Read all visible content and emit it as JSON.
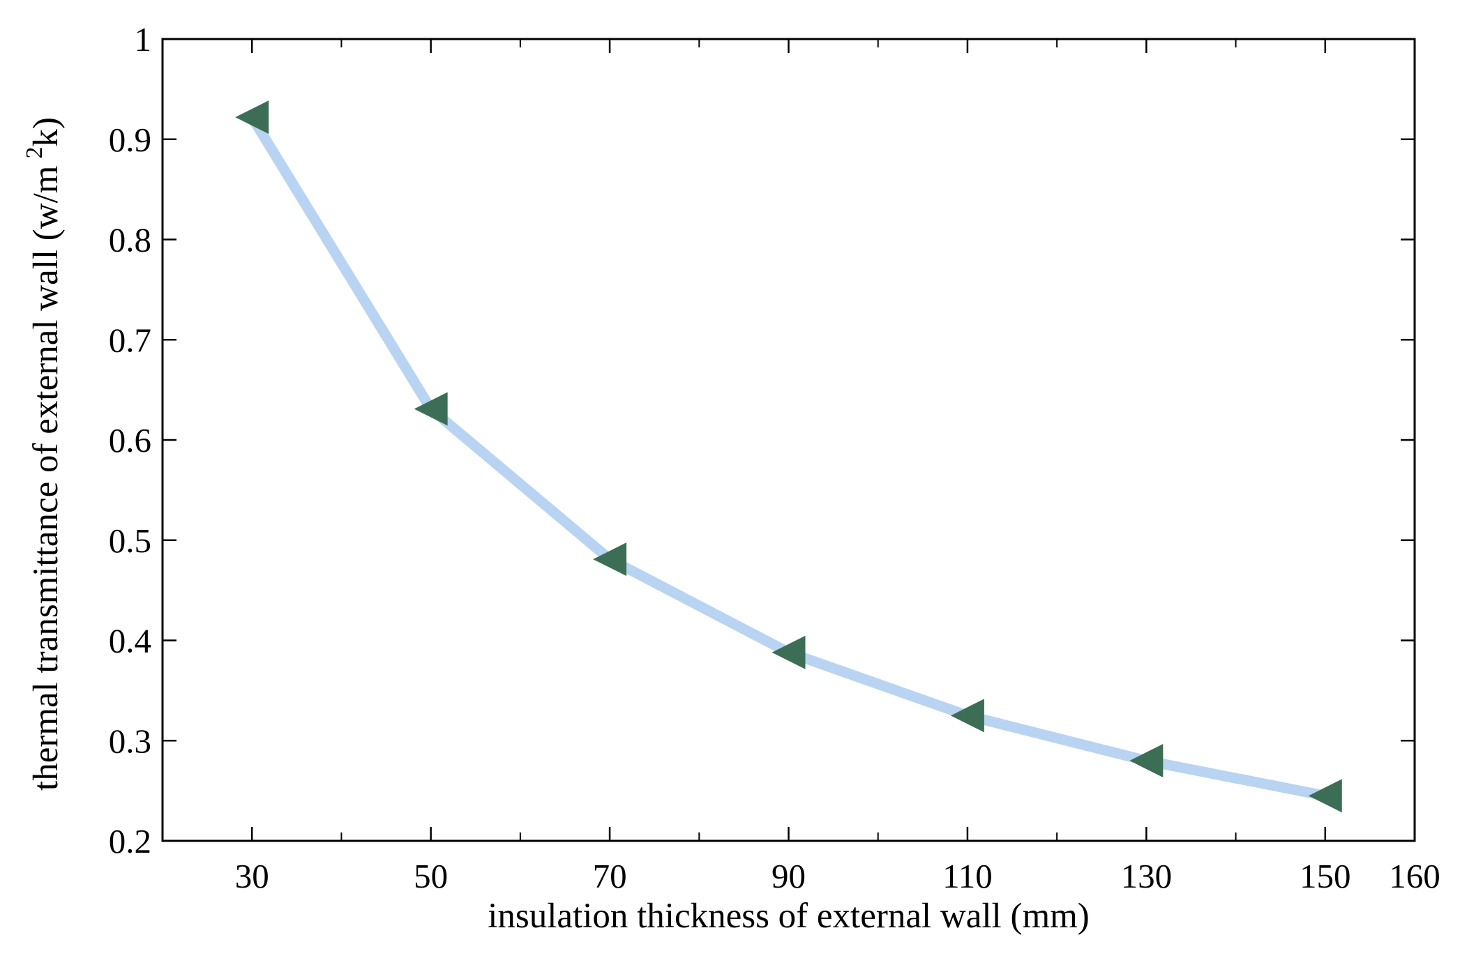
{
  "chart_data": {
    "type": "line",
    "title": "",
    "xlabel": "insulation thickness of external wall (mm)",
    "ylabel": {
      "main": "thermal transmittance of external wall (w/m",
      "superscript": "2",
      "suffix": "k)"
    },
    "xlim": [
      20,
      160
    ],
    "ylim": [
      0.2,
      1
    ],
    "xticks": [
      30,
      50,
      70,
      90,
      110,
      130,
      150,
      160
    ],
    "xtick_labels": [
      "30",
      "50",
      "70",
      "90",
      "110",
      "130",
      "150",
      "160"
    ],
    "x_minor_ticks": [
      40,
      60,
      80,
      100,
      120,
      140
    ],
    "yticks": [
      0.2,
      0.3,
      0.4,
      0.5,
      0.6,
      0.7,
      0.8,
      0.9,
      1
    ],
    "ytick_labels": [
      "0.2",
      "0.3",
      "0.4",
      "0.5",
      "0.6",
      "0.7",
      "0.8",
      "0.9",
      "1"
    ],
    "grid": false,
    "series": [
      {
        "name": "thermal transmittance",
        "x": [
          30,
          50,
          70,
          90,
          110,
          130,
          150
        ],
        "y": [
          0.922,
          0.631,
          0.481,
          0.388,
          0.325,
          0.28,
          0.245
        ],
        "line_color": "#b9d4f2",
        "marker": "left-triangle",
        "marker_color": "#3c6e56"
      }
    ]
  }
}
